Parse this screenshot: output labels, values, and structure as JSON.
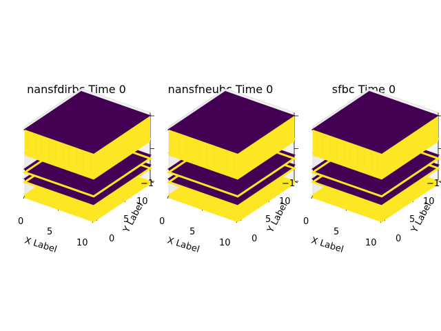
{
  "chart_data": [
    {
      "type": "scatter3d",
      "title": "nansfdirbc Time 0",
      "xlabel": "X Label",
      "ylabel": "Y Label",
      "zlabel": "",
      "x_ticks": [
        "0",
        "5",
        "10"
      ],
      "y_ticks": [
        "0",
        "5",
        "10"
      ],
      "z_ticks": [
        "−1"
      ],
      "xlim": [
        0,
        10
      ],
      "ylim": [
        0,
        10
      ],
      "zlim": [
        -1,
        0
      ],
      "z_levels": [
        {
          "z": 0.0,
          "color": "#440154"
        },
        {
          "z": -0.35,
          "color": "#fde725"
        },
        {
          "z": -0.6,
          "color": "#440154"
        },
        {
          "z": -0.75,
          "color": "#440154"
        },
        {
          "z": -1.0,
          "color": "#fde725"
        }
      ],
      "colormap": "viridis"
    },
    {
      "type": "scatter3d",
      "title": "nansfneubc Time 0",
      "xlabel": "X Label",
      "ylabel": "Y Label",
      "zlabel": "",
      "x_ticks": [
        "0",
        "5",
        "10"
      ],
      "y_ticks": [
        "0",
        "5",
        "10"
      ],
      "z_ticks": [
        "−1"
      ],
      "xlim": [
        0,
        10
      ],
      "ylim": [
        0,
        10
      ],
      "zlim": [
        -1,
        0
      ],
      "z_levels": [
        {
          "z": 0.0,
          "color": "#440154"
        },
        {
          "z": -0.35,
          "color": "#fde725"
        },
        {
          "z": -0.6,
          "color": "#440154"
        },
        {
          "z": -0.75,
          "color": "#440154"
        },
        {
          "z": -1.0,
          "color": "#fde725"
        }
      ],
      "colormap": "viridis"
    },
    {
      "type": "scatter3d",
      "title": "sfbc Time 0",
      "xlabel": "X Label",
      "ylabel": "Y Label",
      "zlabel": "",
      "x_ticks": [
        "0",
        "5",
        "10"
      ],
      "y_ticks": [
        "0",
        "5",
        "10"
      ],
      "z_ticks": [
        "−1"
      ],
      "xlim": [
        0,
        10
      ],
      "ylim": [
        0,
        10
      ],
      "zlim": [
        -1,
        0
      ],
      "z_levels": [
        {
          "z": 0.0,
          "color": "#440154"
        },
        {
          "z": -0.35,
          "color": "#fde725"
        },
        {
          "z": -0.6,
          "color": "#440154"
        },
        {
          "z": -0.75,
          "color": "#440154"
        },
        {
          "z": -1.0,
          "color": "#fde725"
        }
      ],
      "colormap": "viridis"
    }
  ],
  "colors": {
    "yellow": "#fde725",
    "purple": "#440154",
    "pane": "#f2f2f2",
    "grid": "#d0d0d0"
  }
}
